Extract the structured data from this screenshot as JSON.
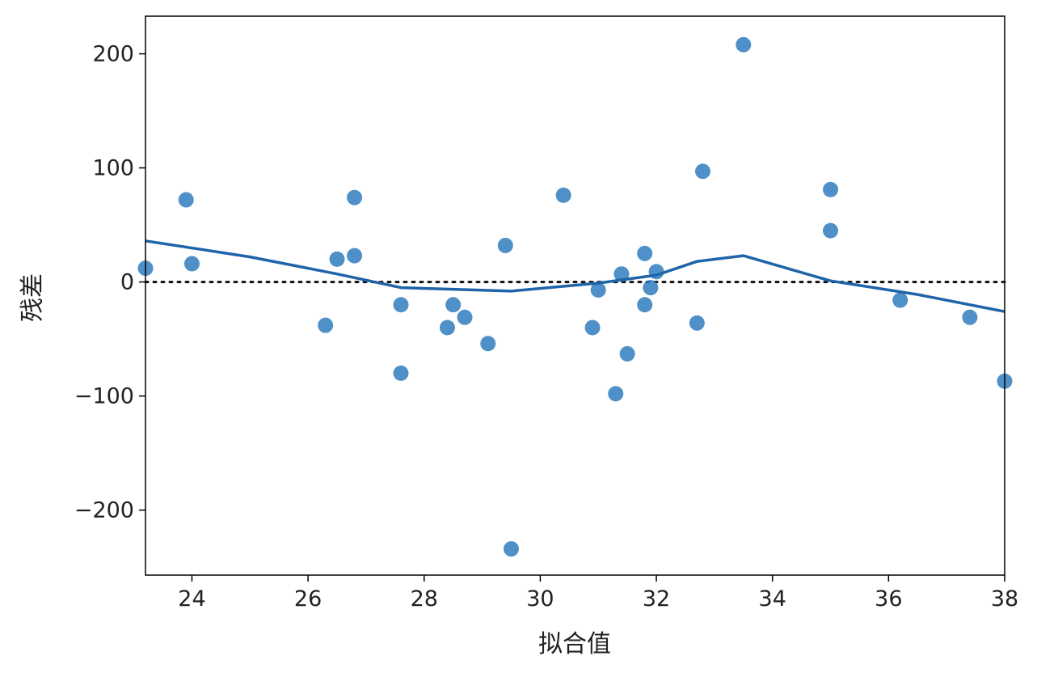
{
  "chart_data": {
    "type": "scatter",
    "xlabel": "拟合值",
    "ylabel": "残差",
    "xlim": [
      23.2,
      38.0
    ],
    "ylim": [
      -257,
      233
    ],
    "xticks": [
      24,
      26,
      28,
      30,
      32,
      34,
      36,
      38
    ],
    "yticks": [
      -200,
      -100,
      0,
      100,
      200
    ],
    "xtick_labels": [
      "24",
      "26",
      "28",
      "30",
      "32",
      "34",
      "36",
      "38"
    ],
    "ytick_labels": [
      "−200",
      "−100",
      "0",
      "100",
      "200"
    ],
    "grid": false,
    "reference_line": {
      "y": 0,
      "style": "dotted"
    },
    "colors": {
      "points": "#2f7dbd",
      "trend": "#1f63a9",
      "reference": "#111111"
    },
    "points": [
      {
        "x": 23.2,
        "y": 12
      },
      {
        "x": 23.9,
        "y": 72
      },
      {
        "x": 24.0,
        "y": 16
      },
      {
        "x": 26.3,
        "y": -38
      },
      {
        "x": 26.5,
        "y": 20
      },
      {
        "x": 26.8,
        "y": 74
      },
      {
        "x": 26.8,
        "y": 23
      },
      {
        "x": 27.6,
        "y": -20
      },
      {
        "x": 27.6,
        "y": -80
      },
      {
        "x": 28.4,
        "y": -40
      },
      {
        "x": 28.5,
        "y": -20
      },
      {
        "x": 28.7,
        "y": -31
      },
      {
        "x": 29.1,
        "y": -54
      },
      {
        "x": 29.4,
        "y": 32
      },
      {
        "x": 29.5,
        "y": -234
      },
      {
        "x": 30.4,
        "y": 76
      },
      {
        "x": 30.9,
        "y": -40
      },
      {
        "x": 31.0,
        "y": -7
      },
      {
        "x": 31.3,
        "y": -98
      },
      {
        "x": 31.4,
        "y": 7
      },
      {
        "x": 31.5,
        "y": -63
      },
      {
        "x": 31.8,
        "y": 25
      },
      {
        "x": 31.8,
        "y": -20
      },
      {
        "x": 31.9,
        "y": -5
      },
      {
        "x": 32.0,
        "y": 9
      },
      {
        "x": 32.7,
        "y": -36
      },
      {
        "x": 32.8,
        "y": 97
      },
      {
        "x": 33.5,
        "y": 208
      },
      {
        "x": 35.0,
        "y": 81
      },
      {
        "x": 35.0,
        "y": 45
      },
      {
        "x": 36.2,
        "y": -16
      },
      {
        "x": 37.4,
        "y": -31
      },
      {
        "x": 38.0,
        "y": -87
      }
    ],
    "trend_line": [
      {
        "x": 23.2,
        "y": 36
      },
      {
        "x": 25.0,
        "y": 22
      },
      {
        "x": 26.5,
        "y": 7
      },
      {
        "x": 27.6,
        "y": -5
      },
      {
        "x": 29.5,
        "y": -8
      },
      {
        "x": 31.0,
        "y": -1
      },
      {
        "x": 32.0,
        "y": 6
      },
      {
        "x": 32.7,
        "y": 18
      },
      {
        "x": 33.5,
        "y": 23
      },
      {
        "x": 35.0,
        "y": 1
      },
      {
        "x": 36.5,
        "y": -11
      },
      {
        "x": 38.0,
        "y": -26
      }
    ]
  }
}
